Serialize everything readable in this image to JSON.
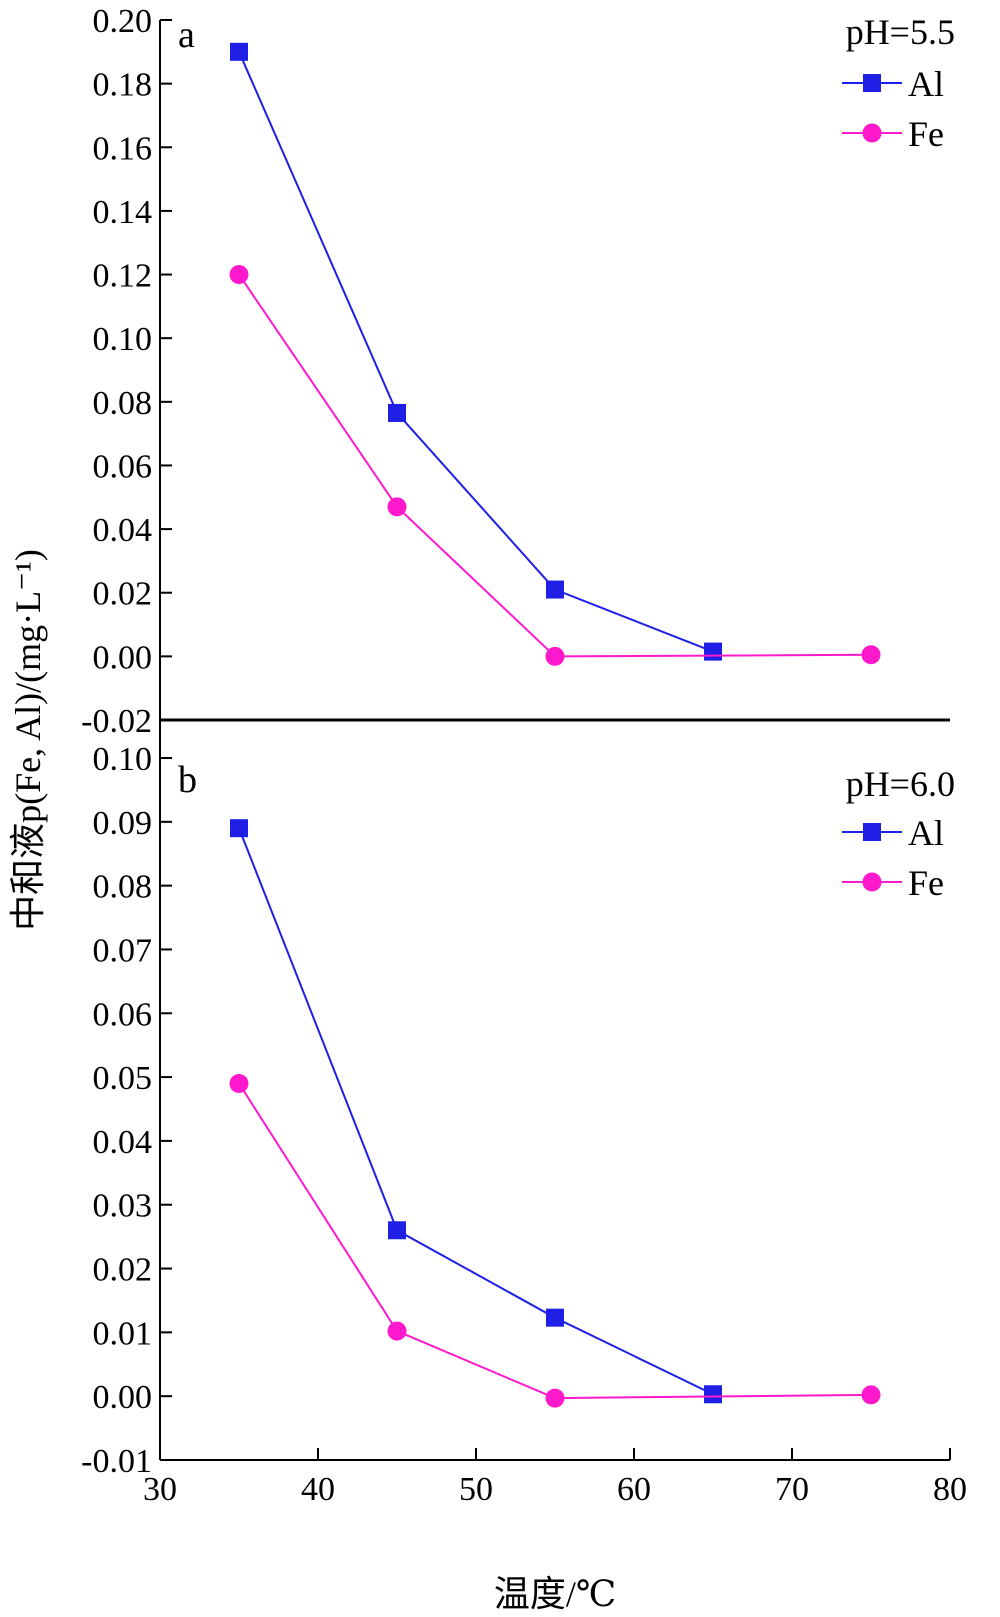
{
  "chart_data": [
    {
      "type": "line",
      "panel_label": "a",
      "annotation": "pH=5.5",
      "x": [
        35,
        45,
        55,
        65,
        75
      ],
      "ylim": [
        -0.02,
        0.2
      ],
      "yticks": [
        "-0.02",
        "0.00",
        "0.02",
        "0.04",
        "0.06",
        "0.08",
        "0.10",
        "0.12",
        "0.14",
        "0.16",
        "0.18",
        "0.20"
      ],
      "legend_position": "top-right",
      "series": [
        {
          "name": "Al",
          "marker": "square",
          "color": "#1f1fe6",
          "x": [
            35,
            45,
            55,
            65
          ],
          "values": [
            0.19,
            0.0765,
            0.021,
            0.0015
          ]
        },
        {
          "name": "Fe",
          "marker": "circle",
          "color": "#ff19cc",
          "x": [
            35,
            45,
            55,
            75
          ],
          "values": [
            0.12,
            0.047,
            0.0,
            0.0005
          ]
        }
      ]
    },
    {
      "type": "line",
      "panel_label": "b",
      "annotation": "pH=6.0",
      "x": [
        35,
        45,
        55,
        65,
        75
      ],
      "ylim": [
        -0.01,
        0.1
      ],
      "yticks": [
        "-0.01",
        "0.00",
        "0.01",
        "0.02",
        "0.03",
        "0.04",
        "0.05",
        "0.06",
        "0.07",
        "0.08",
        "0.09",
        "0.10"
      ],
      "legend_position": "top-right",
      "series": [
        {
          "name": "Al",
          "marker": "square",
          "color": "#1f1fe6",
          "x": [
            35,
            45,
            55,
            65
          ],
          "values": [
            0.089,
            0.026,
            0.0123,
            0.0003
          ]
        },
        {
          "name": "Fe",
          "marker": "circle",
          "color": "#ff19cc",
          "x": [
            35,
            45,
            55,
            75
          ],
          "values": [
            0.049,
            0.0102,
            -0.0003,
            0.0002
          ]
        }
      ]
    }
  ],
  "x_axis": {
    "xlim": [
      30,
      80
    ],
    "xticks": [
      "30",
      "40",
      "50",
      "60",
      "70",
      "80"
    ],
    "label": "温度/℃"
  },
  "y_axis_label": "中和液p(Fe, Al)/(mg·L⁻¹)"
}
